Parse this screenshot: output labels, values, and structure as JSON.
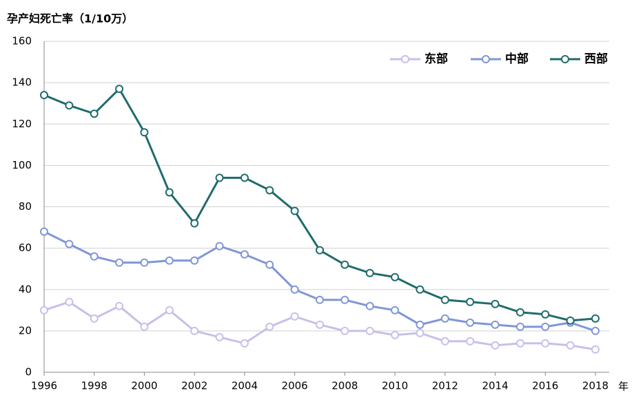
{
  "chart_data": {
    "type": "line",
    "title": "孕产妇死亡率（1/10万）",
    "x_label": "年",
    "x": [
      1996,
      1997,
      1998,
      1999,
      2000,
      2001,
      2002,
      2003,
      2004,
      2005,
      2006,
      2007,
      2008,
      2009,
      2010,
      2011,
      2012,
      2013,
      2014,
      2015,
      2016,
      2017,
      2018
    ],
    "series": [
      {
        "name": "东部",
        "color": "#c5c0ea",
        "values": [
          30,
          34,
          26,
          32,
          22,
          30,
          20,
          17,
          14,
          22,
          27,
          23,
          20,
          20,
          18,
          19,
          15,
          15,
          13,
          14,
          14,
          13,
          11
        ]
      },
      {
        "name": "中部",
        "color": "#7f96d8",
        "values": [
          68,
          62,
          56,
          53,
          53,
          54,
          54,
          61,
          57,
          52,
          40,
          35,
          35,
          32,
          30,
          23,
          26,
          24,
          23,
          22,
          22,
          24,
          20
        ]
      },
      {
        "name": "西部",
        "color": "#1f6b6b",
        "values": [
          134,
          129,
          125,
          137,
          116,
          87,
          72,
          94,
          94,
          88,
          78,
          59,
          52,
          48,
          46,
          40,
          35,
          34,
          33,
          29,
          28,
          25,
          26
        ]
      }
    ],
    "xlim": [
      1996,
      2018
    ],
    "xticks": [
      1996,
      1998,
      2000,
      2002,
      2004,
      2006,
      2008,
      2010,
      2012,
      2014,
      2016,
      2018
    ],
    "ylim": [
      0,
      160
    ],
    "yticks": [
      0,
      20,
      40,
      60,
      80,
      100,
      120,
      140,
      160
    ],
    "grid": true,
    "legend": "top-right"
  }
}
